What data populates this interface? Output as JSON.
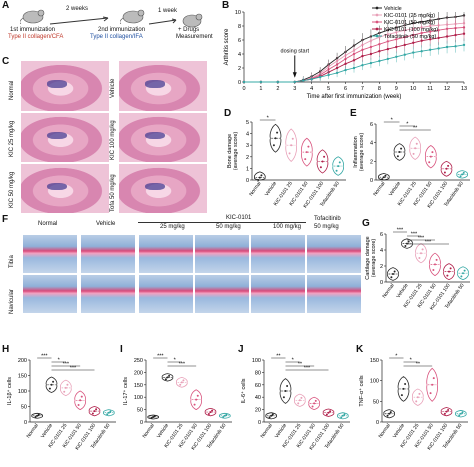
{
  "panels": {
    "A": "A",
    "B": "B",
    "C": "C",
    "D": "D",
    "E": "E",
    "F": "F",
    "G": "G",
    "H": "H",
    "I": "I",
    "J": "J",
    "K": "K"
  },
  "panel_a": {
    "step1_interval": "2 weeks",
    "step2_interval": "1 week",
    "first_imm": "1st immunization",
    "first_imm_agent": "Type II collagen/CFA",
    "second_imm": "2nd immunization",
    "second_imm_agent": "Type II collagen/IFA",
    "drugs_line1": "+ Drugs",
    "drugs_line2": "Measurement"
  },
  "panel_c": {
    "labels_left": [
      "Normal",
      "KIC 25 mg/kg",
      "KIC 50 mg/kg"
    ],
    "labels_right": [
      "Vehicle",
      "KIC 100 mg/kg",
      "Tofa 50 mg/kg"
    ]
  },
  "panel_f": {
    "groups": [
      "Normal",
      "Vehicle",
      "25 mg/kg",
      "50 mg/kg",
      "100 mg/kg",
      "Tofacitinib"
    ],
    "kic_header": "KIC-0101",
    "tofa_dose": "50 mg/kg",
    "rows": [
      "Tibia",
      "Navicular"
    ]
  },
  "small_xcats": [
    "Normal",
    "Vehicle",
    "KIC-0101 25",
    "KIC-0101 50",
    "KIC-0101 100",
    "Tofacitinib 50"
  ],
  "colors": {
    "normal": "#222222",
    "vehicle": "#2b2b2b",
    "kic25": "#e8a0b8",
    "kic50": "#d9557f",
    "kic100": "#b01f4a",
    "tofa": "#35a8a5"
  },
  "chart_data": [
    {
      "id": "B",
      "type": "line",
      "xlabel": "Time after first immunization (week)",
      "ylabel": "Arthritis score",
      "annotation": "dosing start",
      "annotation_x": 3,
      "x": [
        0,
        1,
        2,
        3,
        3.5,
        4,
        4.5,
        5,
        5.5,
        6,
        6.5,
        7,
        7.5,
        8,
        8.5,
        9,
        9.5,
        10,
        10.5,
        11,
        11.5,
        12,
        12.5,
        13
      ],
      "xticks": [
        0,
        1,
        2,
        3,
        4,
        5,
        6,
        7,
        8,
        9,
        10,
        11,
        12,
        13
      ],
      "yticks": [
        0,
        2,
        4,
        6,
        8,
        10
      ],
      "ylim": [
        0,
        10
      ],
      "legend_position": "top-right",
      "series": [
        {
          "name": "Vehicle",
          "color": "#222222",
          "values": [
            0,
            0,
            0,
            0,
            0.3,
            0.8,
            1.5,
            2.5,
            3.4,
            4.3,
            5.2,
            6.0,
            6.5,
            7.0,
            7.4,
            7.8,
            8.1,
            8.4,
            8.6,
            8.8,
            9.0,
            9.2,
            9.3,
            9.5
          ]
        },
        {
          "name": "KIC-0101 (25 mg/kg)",
          "color": "#e8a0b8",
          "values": [
            0,
            0,
            0,
            0,
            0.2,
            0.6,
            1.2,
            2.2,
            3.0,
            3.8,
            4.5,
            5.3,
            5.9,
            6.4,
            6.8,
            7.1,
            7.4,
            7.6,
            7.8,
            8.0,
            8.1,
            8.2,
            8.3,
            8.4
          ]
        },
        {
          "name": "KIC-0101 (50 mg/kg)",
          "color": "#d9557f",
          "values": [
            0,
            0,
            0,
            0,
            0.2,
            0.5,
            1.0,
            1.8,
            2.5,
            3.3,
            4.0,
            4.6,
            5.0,
            5.4,
            5.8,
            6.1,
            6.4,
            6.7,
            7.0,
            7.2,
            7.4,
            7.6,
            7.7,
            7.8
          ]
        },
        {
          "name": "KIC-0101 (100 mg/kg)",
          "color": "#b01f4a",
          "values": [
            0,
            0,
            0,
            0,
            0.2,
            0.4,
            0.8,
            1.4,
            2.0,
            2.6,
            3.1,
            3.7,
            4.0,
            4.4,
            4.7,
            5.0,
            5.3,
            5.6,
            5.9,
            6.1,
            6.3,
            6.5,
            6.7,
            6.9
          ]
        },
        {
          "name": "Tofacitinib (50 mg/kg)",
          "color": "#35a8a5",
          "values": [
            0,
            0,
            0,
            0,
            0.2,
            0.4,
            0.7,
            1.0,
            1.3,
            1.7,
            2.0,
            2.4,
            2.7,
            3.0,
            3.3,
            3.6,
            3.9,
            4.2,
            4.4,
            4.6,
            4.8,
            5.0,
            5.1,
            5.3
          ]
        }
      ]
    },
    {
      "id": "D",
      "type": "violin",
      "ylabel": "Bone damage\n(average score)",
      "ylim": [
        0,
        5
      ],
      "yticks": [
        0,
        1,
        2,
        3,
        4,
        5
      ],
      "values": [
        0.2,
        3.6,
        3.0,
        2.4,
        1.6,
        1.2
      ],
      "spread": [
        0.5,
        1.2,
        1.4,
        1.2,
        1.0,
        0.8
      ],
      "sig": [
        "*"
      ]
    },
    {
      "id": "E",
      "type": "violin",
      "ylabel": "Inflammation\n(average score)",
      "ylim": [
        0,
        6
      ],
      "yticks": [
        0,
        2,
        4,
        6
      ],
      "values": [
        0.3,
        3.0,
        3.4,
        2.5,
        1.2,
        0.6
      ],
      "spread": [
        0.4,
        0.9,
        1.2,
        1.2,
        0.8,
        0.4
      ],
      "sig": [
        "*",
        "*",
        "**"
      ]
    },
    {
      "id": "G",
      "type": "violin",
      "ylabel": "Cartilage damage\n(average score)",
      "ylim": [
        0,
        6
      ],
      "yticks": [
        0,
        2,
        4,
        6
      ],
      "values": [
        1.0,
        4.8,
        3.6,
        2.2,
        1.3,
        1.1
      ],
      "spread": [
        0.8,
        0.6,
        1.2,
        1.4,
        1.0,
        0.8
      ],
      "sig": [
        "***",
        "***",
        "***",
        "***"
      ]
    },
    {
      "id": "H",
      "type": "violin",
      "ylabel": "IL-1β⁺ cells",
      "ylim": [
        0,
        200
      ],
      "yticks": [
        0,
        50,
        100,
        150,
        200
      ],
      "values": [
        20,
        120,
        110,
        70,
        35,
        30
      ],
      "spread": [
        8,
        25,
        25,
        30,
        15,
        10
      ],
      "sig": [
        "***",
        "*",
        "***",
        "***"
      ]
    },
    {
      "id": "I",
      "type": "violin",
      "ylabel": "IL-17⁺ cells",
      "ylim": [
        0,
        250
      ],
      "yticks": [
        0,
        50,
        100,
        150,
        200,
        250
      ],
      "values": [
        20,
        180,
        160,
        90,
        40,
        25
      ],
      "spread": [
        8,
        15,
        20,
        40,
        15,
        10
      ],
      "sig": [
        "***",
        "*",
        "***"
      ]
    },
    {
      "id": "J",
      "type": "violin",
      "ylabel": "IL-6⁺ cells",
      "ylim": [
        0,
        100
      ],
      "yticks": [
        0,
        20,
        40,
        60,
        80,
        100
      ],
      "values": [
        10,
        50,
        35,
        30,
        15,
        10
      ],
      "spread": [
        5,
        20,
        10,
        10,
        6,
        5
      ],
      "sig": [
        "**",
        "*",
        "**",
        "***"
      ]
    },
    {
      "id": "K",
      "type": "violin",
      "ylabel": "TNF-α⁺ cells",
      "ylim": [
        0,
        150
      ],
      "yticks": [
        0,
        50,
        100,
        150
      ],
      "values": [
        20,
        80,
        60,
        90,
        25,
        20
      ],
      "spread": [
        10,
        30,
        20,
        40,
        10,
        8
      ],
      "sig": [
        "*",
        "*",
        "**"
      ]
    }
  ]
}
